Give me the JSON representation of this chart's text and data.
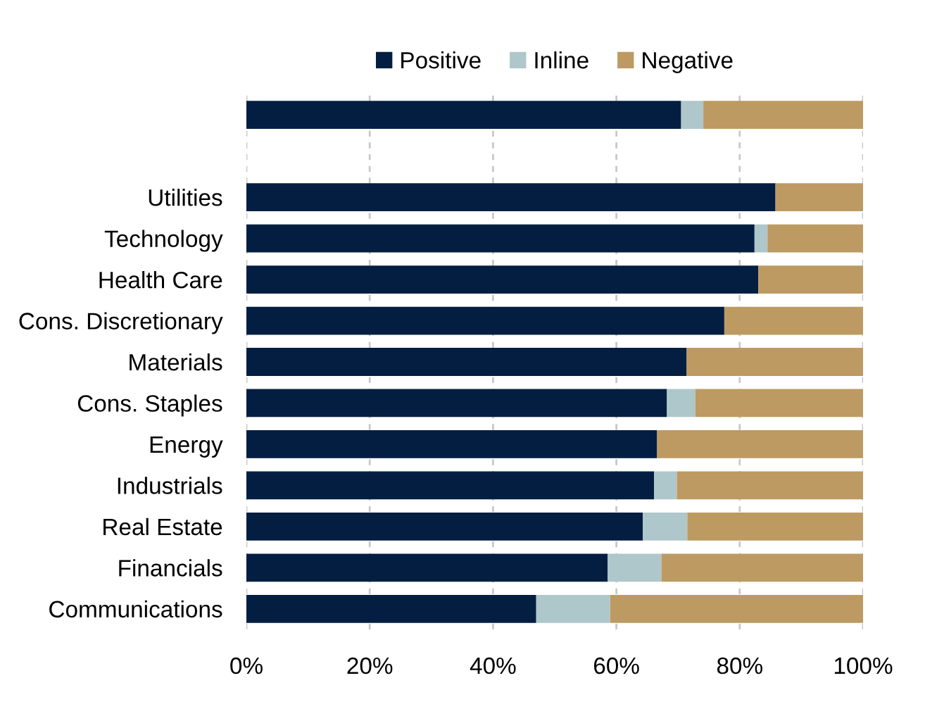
{
  "chart_data": {
    "type": "bar",
    "orientation": "horizontal",
    "stacked": true,
    "categories": [
      null,
      null,
      "Utilities",
      "Technology",
      "Health Care",
      "Cons. Discretionary",
      "Materials",
      "Cons. Staples",
      "Energy",
      "Industrials",
      "Real Estate",
      "Financials",
      "Communications"
    ],
    "series": [
      {
        "name": "Positive",
        "color": "#041e42",
        "values": [
          70.5,
          null,
          85.8,
          82.4,
          83.0,
          77.5,
          71.4,
          68.2,
          66.6,
          66.1,
          64.3,
          58.6,
          47.0
        ]
      },
      {
        "name": "Inline",
        "color": "#aec7cb",
        "values": [
          3.6,
          null,
          0,
          2.1,
          0,
          0,
          0,
          4.6,
          0,
          3.7,
          7.2,
          8.7,
          12.0
        ]
      },
      {
        "name": "Negative",
        "color": "#bd9a62",
        "values": [
          25.9,
          null,
          14.2,
          15.5,
          17.0,
          22.5,
          28.6,
          27.2,
          33.4,
          30.2,
          28.5,
          32.7,
          41.0
        ]
      }
    ],
    "xlim": [
      0,
      100
    ],
    "xticks": [
      {
        "value": 0,
        "label": "0%"
      },
      {
        "value": 20,
        "label": "20%"
      },
      {
        "value": 40,
        "label": "40%"
      },
      {
        "value": 60,
        "label": "60%"
      },
      {
        "value": 80,
        "label": "80%"
      },
      {
        "value": 100,
        "label": "100%"
      }
    ],
    "grid": "x",
    "legend": "top"
  }
}
